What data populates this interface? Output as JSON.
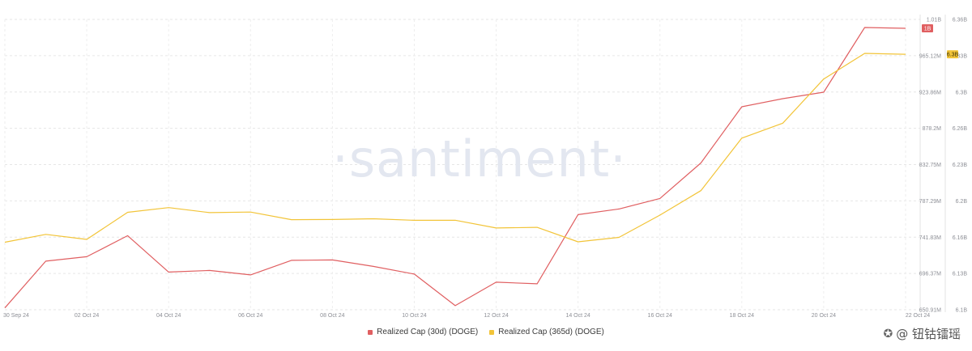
{
  "chart_data": {
    "type": "line",
    "watermark": "·santiment·",
    "x": [
      "30 Sep 24",
      "01 Oct 24",
      "02 Oct 24",
      "03 Oct 24",
      "04 Oct 24",
      "05 Oct 24",
      "06 Oct 24",
      "07 Oct 24",
      "08 Oct 24",
      "09 Oct 24",
      "10 Oct 24",
      "11 Oct 24",
      "12 Oct 24",
      "13 Oct 24",
      "14 Oct 24",
      "15 Oct 24",
      "16 Oct 24",
      "17 Oct 24",
      "18 Oct 24",
      "19 Oct 24",
      "20 Oct 24",
      "21 Oct 24",
      "22 Oct 24"
    ],
    "x_tick_labels": [
      "30 Sep 24",
      "02 Oct 24",
      "04 Oct 24",
      "06 Oct 24",
      "08 Oct 24",
      "10 Oct 24",
      "12 Oct 24",
      "14 Oct 24",
      "16 Oct 24",
      "18 Oct 24",
      "20 Oct 24",
      "22 Oct 24"
    ],
    "series": [
      {
        "name": "Realized Cap (30d) (DOGE)",
        "color": "#e05f61",
        "axis": "left",
        "values": [
          653.2,
          711.0,
          716.5,
          742.5,
          697.5,
          699.5,
          694.0,
          712.0,
          712.5,
          704.5,
          695.0,
          656.0,
          685.0,
          683.0,
          768.5,
          775.5,
          788.5,
          832.5,
          902.0,
          912.0,
          920.0,
          1000.0,
          999.0
        ],
        "badge": "1B",
        "ylim": [
          650.91,
          1010
        ],
        "yticks": [
          "1.01B",
          "965.12M",
          "923.86M",
          "878.2M",
          "832.75M",
          "787.29M",
          "741.83M",
          "696.37M",
          "650.91M"
        ]
      },
      {
        "name": "Realized Cap (365d) (DOGE)",
        "color": "#f2c438",
        "axis": "right",
        "values": [
          6.1605,
          6.1675,
          6.163,
          6.1873,
          6.1915,
          6.187,
          6.1875,
          6.1807,
          6.1808,
          6.1815,
          6.1801,
          6.1802,
          6.1732,
          6.1738,
          6.1608,
          6.1648,
          6.1847,
          6.2067,
          6.2537,
          6.2671,
          6.3066,
          6.3296,
          6.3288
        ],
        "badge": "6.3B",
        "ylim": [
          6.1,
          6.36
        ],
        "yticks": [
          "6.36B",
          "6.33B",
          "6.3B",
          "6.26B",
          "6.23B",
          "6.2B",
          "6.16B",
          "6.13B",
          "6.1B"
        ]
      }
    ],
    "grid": true,
    "legend_position": "bottom"
  },
  "credit": {
    "icon": "weibo-icon",
    "text": "@ 钮钴镭瑶"
  }
}
